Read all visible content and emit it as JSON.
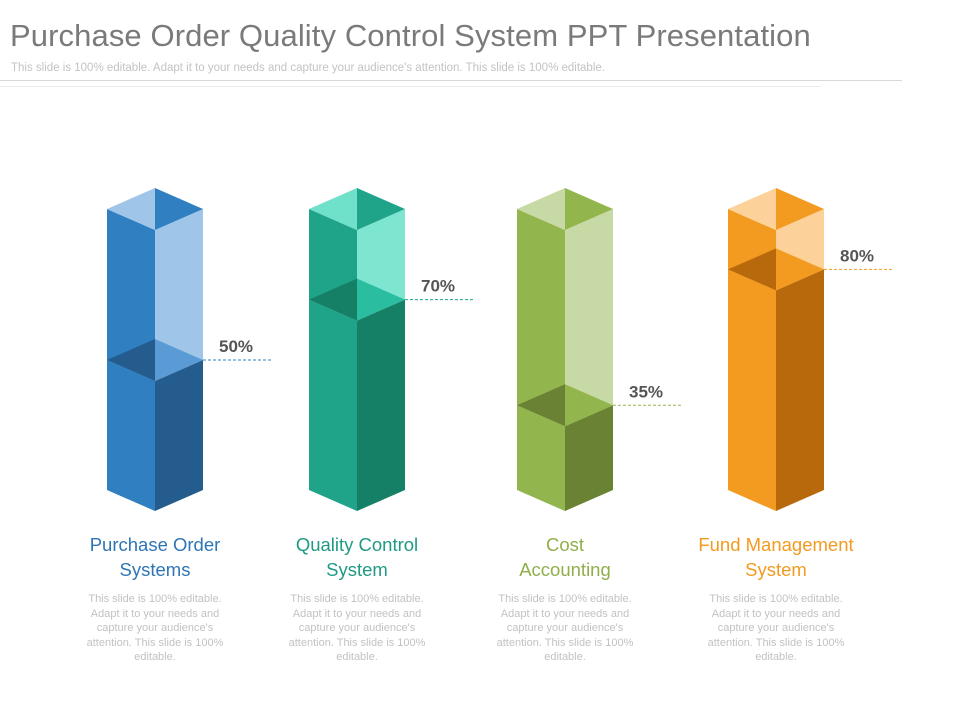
{
  "slide": {
    "title": "Purchase Order Quality Control System PPT Presentation",
    "subtitle": "This slide is 100% editable. Adapt it to your needs and capture your audience's attention. This slide is 100% editable."
  },
  "chart_data": {
    "type": "bar",
    "title": "Purchase Order Quality Control System PPT Presentation",
    "xlabel": "",
    "ylabel": "",
    "ylim": [
      0,
      100
    ],
    "unit": "%",
    "categories": [
      "Purchase Order Systems",
      "Quality Control System",
      "Cost Accounting",
      "Fund Management System"
    ],
    "values": [
      50,
      70,
      35,
      80
    ],
    "value_labels": [
      "50%",
      "70%",
      "35%",
      "80%"
    ],
    "category_lines": [
      [
        "Purchase Order",
        "Systems"
      ],
      [
        "Quality Control",
        "System"
      ],
      [
        "Cost",
        "Accounting"
      ],
      [
        "Fund Management",
        "System"
      ]
    ],
    "descriptions": [
      [
        "This slide is 100% editable.",
        "Adapt it to your needs and",
        "capture your audience's",
        "attention. This slide is 100%",
        "editable."
      ],
      [
        "This slide is 100% editable.",
        "Adapt it to your needs and",
        "capture your audience's",
        "attention. This slide is 100%",
        "editable."
      ],
      [
        "This slide is 100% editable.",
        "Adapt it to your needs and",
        "capture your audience's",
        "attention. This slide is 100%",
        "editable."
      ],
      [
        "This slide is 100% editable.",
        "Adapt it to your needs and",
        "capture your audience's",
        "attention. This slide is 100%",
        "editable."
      ]
    ],
    "colors": [
      {
        "left": "#2f7fc1",
        "right": "#245c8d",
        "empty_right": "#9fc5e8",
        "top_light": "#9fc5e8",
        "top_dark": "#2f7fc1",
        "fill_top_light": "#5a9bd5",
        "fill_top_dark": "#245c8d",
        "label": "#2e75b6"
      },
      {
        "left": "#1fa48a",
        "right": "#168066",
        "empty_right": "#7ee5d0",
        "top_light": "#6fe0c9",
        "top_dark": "#1fa48a",
        "fill_top_light": "#2bbd9f",
        "fill_top_dark": "#168066",
        "label": "#1f9a84"
      },
      {
        "left": "#93b54d",
        "right": "#6a8234",
        "empty_right": "#c7d9a4",
        "top_light": "#c7d9a4",
        "top_dark": "#93b54d",
        "fill_top_light": "#93b54d",
        "fill_top_dark": "#6a8234",
        "label": "#8faf4a"
      },
      {
        "left": "#f29b20",
        "right": "#b8690c",
        "empty_right": "#fcd29a",
        "top_light": "#fcd29a",
        "top_dark": "#f29b20",
        "fill_top_light": "#f29b20",
        "fill_top_dark": "#b8690c",
        "label": "#f29b20"
      }
    ]
  }
}
